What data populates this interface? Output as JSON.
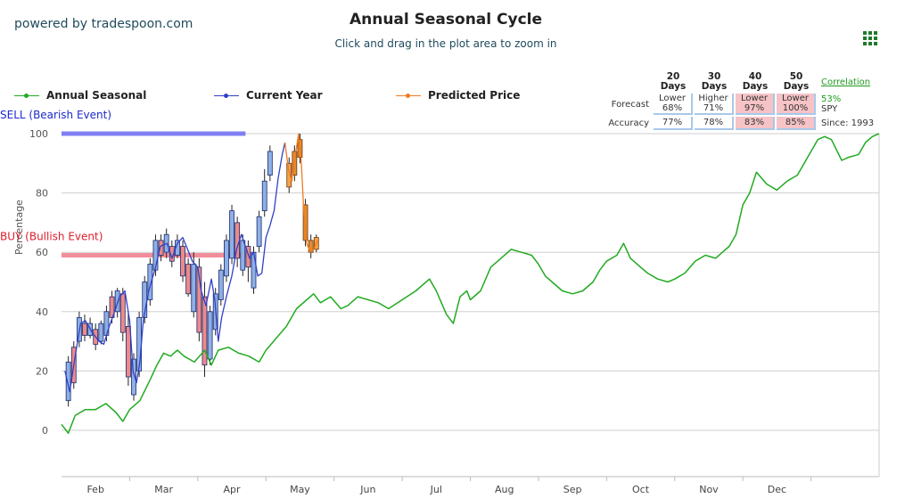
{
  "header": {
    "powered_by": "powered by tradespoon.com",
    "title": "Annual Seasonal Cycle",
    "subtitle": "Click and drag in the plot area to zoom in"
  },
  "legend": {
    "items": [
      {
        "label": "Annual Seasonal",
        "color": "#22aa22"
      },
      {
        "label": "Current Year",
        "color": "#3040c8"
      },
      {
        "label": "Predicted Price",
        "color": "#f07a20"
      }
    ]
  },
  "forecast_table": {
    "columns": [
      "20 Days",
      "30 Days",
      "40 Days",
      "50 Days"
    ],
    "forecast_label": "Forecast",
    "accuracy_label": "Accuracy",
    "forecast": [
      {
        "dir": "Lower",
        "pct": "68%",
        "highlight": false
      },
      {
        "dir": "Higher",
        "pct": "71%",
        "highlight": false
      },
      {
        "dir": "Lower",
        "pct": "97%",
        "highlight": true
      },
      {
        "dir": "Lower",
        "pct": "100%",
        "highlight": true
      }
    ],
    "accuracy": [
      {
        "pct": "77%",
        "highlight": false
      },
      {
        "pct": "78%",
        "highlight": false
      },
      {
        "pct": "83%",
        "highlight": true
      },
      {
        "pct": "85%",
        "highlight": true
      }
    ],
    "correlation_label": "Correlation",
    "correlation_value": "53%",
    "symbol": "SPY",
    "since": "Since: 1993"
  },
  "chart_data": {
    "type": "line",
    "ylabel": "Percentage",
    "ylim": [
      -15,
      100
    ],
    "y_ticks": [
      0,
      20,
      40,
      60,
      80,
      100
    ],
    "x_tick_labels": [
      "Feb",
      "Mar",
      "Apr",
      "May",
      "Jun",
      "Jul",
      "Aug",
      "Sep",
      "Oct",
      "Nov",
      "Dec"
    ],
    "x_tick_month_index": [
      1,
      2,
      3,
      4,
      5,
      6,
      7,
      8,
      9,
      10,
      11
    ],
    "x_range_months": [
      0,
      12
    ],
    "grid": true,
    "legend_position": "top-left",
    "bands": [
      {
        "label": "SELL (Bearish Event)",
        "y": 100,
        "x_start_month": 0,
        "x_end_month": 2.7,
        "color": "#6b6bf0",
        "label_color": "#1e2acc"
      },
      {
        "label": "BUY (Bullish Event)",
        "y": 59,
        "x_start_month": 0,
        "x_end_month": 2.7,
        "color": "#f07a88",
        "label_color": "#dd1e2e"
      }
    ],
    "series": [
      {
        "name": "Annual Seasonal",
        "color": "#22aa22",
        "points": [
          [
            0,
            2
          ],
          [
            0.1,
            -1
          ],
          [
            0.2,
            5
          ],
          [
            0.35,
            7
          ],
          [
            0.5,
            7
          ],
          [
            0.65,
            9
          ],
          [
            0.8,
            6
          ],
          [
            0.9,
            3
          ],
          [
            1.0,
            7
          ],
          [
            1.15,
            10
          ],
          [
            1.3,
            17
          ],
          [
            1.4,
            22
          ],
          [
            1.5,
            26
          ],
          [
            1.6,
            25
          ],
          [
            1.7,
            27
          ],
          [
            1.8,
            25
          ],
          [
            1.95,
            23
          ],
          [
            2.1,
            27
          ],
          [
            2.2,
            22
          ],
          [
            2.3,
            27
          ],
          [
            2.45,
            28
          ],
          [
            2.6,
            26
          ],
          [
            2.75,
            25
          ],
          [
            2.9,
            23
          ],
          [
            3.0,
            27
          ],
          [
            3.15,
            31
          ],
          [
            3.3,
            35
          ],
          [
            3.45,
            41
          ],
          [
            3.6,
            44
          ],
          [
            3.7,
            46
          ],
          [
            3.8,
            43
          ],
          [
            3.95,
            45
          ],
          [
            4.1,
            41
          ],
          [
            4.2,
            42
          ],
          [
            4.35,
            45
          ],
          [
            4.5,
            44
          ],
          [
            4.65,
            43
          ],
          [
            4.8,
            41
          ],
          [
            5.0,
            44
          ],
          [
            5.2,
            47
          ],
          [
            5.4,
            51
          ],
          [
            5.5,
            47
          ],
          [
            5.65,
            39
          ],
          [
            5.75,
            36
          ],
          [
            5.85,
            45
          ],
          [
            5.95,
            47
          ],
          [
            6.0,
            44
          ],
          [
            6.15,
            47
          ],
          [
            6.3,
            55
          ],
          [
            6.45,
            58
          ],
          [
            6.6,
            61
          ],
          [
            6.75,
            60
          ],
          [
            6.9,
            59
          ],
          [
            7.0,
            56
          ],
          [
            7.1,
            52
          ],
          [
            7.2,
            50
          ],
          [
            7.35,
            47
          ],
          [
            7.5,
            46
          ],
          [
            7.65,
            47
          ],
          [
            7.8,
            50
          ],
          [
            7.9,
            54
          ],
          [
            8.0,
            57
          ],
          [
            8.15,
            59
          ],
          [
            8.25,
            63
          ],
          [
            8.35,
            58
          ],
          [
            8.5,
            55
          ],
          [
            8.6,
            53
          ],
          [
            8.75,
            51
          ],
          [
            8.9,
            50
          ],
          [
            9.0,
            51
          ],
          [
            9.15,
            53
          ],
          [
            9.3,
            57
          ],
          [
            9.45,
            59
          ],
          [
            9.6,
            58
          ],
          [
            9.7,
            60
          ],
          [
            9.8,
            62
          ],
          [
            9.9,
            66
          ],
          [
            10.0,
            76
          ],
          [
            10.1,
            80
          ],
          [
            10.2,
            87
          ],
          [
            10.35,
            83
          ],
          [
            10.5,
            81
          ],
          [
            10.65,
            84
          ],
          [
            10.8,
            86
          ],
          [
            10.95,
            92
          ],
          [
            11.1,
            98
          ],
          [
            11.2,
            99
          ],
          [
            11.3,
            98
          ],
          [
            11.45,
            91
          ],
          [
            11.55,
            92
          ],
          [
            11.7,
            93
          ],
          [
            11.8,
            97
          ],
          [
            11.9,
            99
          ],
          [
            12.0,
            100
          ]
        ]
      },
      {
        "name": "Current Year",
        "color": "#3040c8",
        "points": [
          [
            0.05,
            20
          ],
          [
            0.12,
            13
          ],
          [
            0.2,
            25
          ],
          [
            0.28,
            36
          ],
          [
            0.35,
            37
          ],
          [
            0.45,
            33
          ],
          [
            0.55,
            30
          ],
          [
            0.62,
            29
          ],
          [
            0.7,
            35
          ],
          [
            0.78,
            40
          ],
          [
            0.85,
            45
          ],
          [
            0.93,
            47
          ],
          [
            1.0,
            37
          ],
          [
            1.05,
            20
          ],
          [
            1.1,
            16
          ],
          [
            1.15,
            23
          ],
          [
            1.2,
            37
          ],
          [
            1.28,
            47
          ],
          [
            1.38,
            55
          ],
          [
            1.45,
            62
          ],
          [
            1.55,
            63
          ],
          [
            1.62,
            58
          ],
          [
            1.7,
            63
          ],
          [
            1.78,
            65
          ],
          [
            1.85,
            61
          ],
          [
            1.92,
            57
          ],
          [
            2.0,
            55
          ],
          [
            2.05,
            47
          ],
          [
            2.12,
            42
          ],
          [
            2.2,
            51
          ],
          [
            2.25,
            44
          ],
          [
            2.3,
            30
          ],
          [
            2.35,
            38
          ],
          [
            2.42,
            45
          ],
          [
            2.5,
            52
          ],
          [
            2.57,
            61
          ],
          [
            2.64,
            66
          ],
          [
            2.7,
            62
          ],
          [
            2.76,
            58
          ],
          [
            2.82,
            60
          ],
          [
            2.88,
            52
          ],
          [
            2.94,
            53
          ],
          [
            3.0,
            65
          ],
          [
            3.06,
            69
          ],
          [
            3.12,
            74
          ],
          [
            3.18,
            85
          ],
          [
            3.24,
            93
          ],
          [
            3.28,
            97
          ]
        ]
      },
      {
        "name": "Predicted Price",
        "color": "#f07a20",
        "points": [
          [
            3.28,
            97
          ],
          [
            3.33,
            88
          ],
          [
            3.38,
            84
          ],
          [
            3.44,
            94
          ],
          [
            3.48,
            100
          ],
          [
            3.52,
            90
          ],
          [
            3.56,
            72
          ],
          [
            3.6,
            63
          ],
          [
            3.65,
            60
          ],
          [
            3.7,
            61
          ],
          [
            3.76,
            64
          ]
        ]
      }
    ],
    "candles": {
      "current_year": [
        [
          0.1,
          8,
          25,
          10,
          23,
          "up"
        ],
        [
          0.18,
          14,
          30,
          28,
          16,
          "down"
        ],
        [
          0.26,
          28,
          40,
          30,
          38,
          "up"
        ],
        [
          0.34,
          30,
          39,
          36,
          32,
          "down"
        ],
        [
          0.42,
          31,
          38,
          32,
          36,
          "up"
        ],
        [
          0.5,
          27,
          36,
          34,
          29,
          "down"
        ],
        [
          0.58,
          29,
          37,
          30,
          36,
          "up"
        ],
        [
          0.66,
          30,
          42,
          32,
          40,
          "up"
        ],
        [
          0.74,
          36,
          47,
          45,
          38,
          "down"
        ],
        [
          0.82,
          38,
          48,
          40,
          47,
          "up"
        ],
        [
          0.9,
          30,
          48,
          46,
          33,
          "down"
        ],
        [
          0.98,
          15,
          40,
          35,
          18,
          "down"
        ],
        [
          1.06,
          10,
          26,
          12,
          24,
          "up"
        ],
        [
          1.14,
          18,
          40,
          20,
          38,
          "up"
        ],
        [
          1.22,
          36,
          52,
          38,
          50,
          "up"
        ],
        [
          1.3,
          42,
          58,
          44,
          56,
          "up"
        ],
        [
          1.38,
          52,
          66,
          54,
          64,
          "up"
        ],
        [
          1.46,
          57,
          66,
          64,
          59,
          "down"
        ],
        [
          1.54,
          58,
          68,
          60,
          66,
          "up"
        ],
        [
          1.62,
          55,
          64,
          62,
          57,
          "down"
        ],
        [
          1.7,
          58,
          66,
          59,
          64,
          "up"
        ],
        [
          1.78,
          50,
          64,
          62,
          52,
          "down"
        ],
        [
          1.86,
          45,
          58,
          56,
          46,
          "down"
        ],
        [
          1.94,
          38,
          60,
          40,
          56,
          "up"
        ],
        [
          2.02,
          30,
          58,
          55,
          33,
          "down"
        ],
        [
          2.1,
          18,
          50,
          45,
          22,
          "down"
        ],
        [
          2.18,
          22,
          42,
          24,
          40,
          "up"
        ],
        [
          2.26,
          32,
          48,
          34,
          46,
          "up"
        ],
        [
          2.34,
          42,
          56,
          44,
          54,
          "up"
        ],
        [
          2.42,
          50,
          66,
          52,
          64,
          "up"
        ],
        [
          2.5,
          56,
          76,
          58,
          74,
          "up"
        ],
        [
          2.58,
          55,
          72,
          70,
          58,
          "down"
        ],
        [
          2.66,
          52,
          66,
          54,
          64,
          "up"
        ],
        [
          2.74,
          50,
          64,
          62,
          55,
          "down"
        ],
        [
          2.82,
          46,
          62,
          48,
          60,
          "up"
        ],
        [
          2.9,
          60,
          74,
          62,
          72,
          "up"
        ],
        [
          2.98,
          72,
          88,
          74,
          84,
          "up"
        ],
        [
          3.06,
          84,
          96,
          86,
          94,
          "up"
        ]
      ],
      "predicted": [
        [
          3.34,
          80,
          92,
          82,
          90,
          "up"
        ],
        [
          3.42,
          84,
          96,
          94,
          86,
          "down"
        ],
        [
          3.5,
          90,
          100,
          98,
          92,
          "down"
        ],
        [
          3.58,
          62,
          78,
          76,
          64,
          "down"
        ],
        [
          3.66,
          58,
          66,
          64,
          60,
          "down"
        ],
        [
          3.74,
          60,
          66,
          61,
          65,
          "up"
        ]
      ]
    }
  }
}
